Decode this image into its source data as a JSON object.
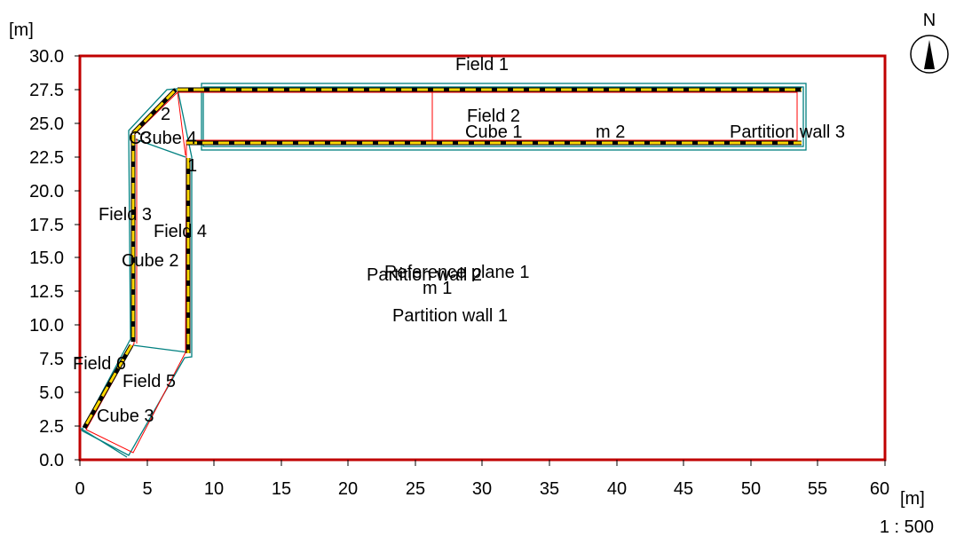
{
  "axes": {
    "y_unit": "[m]",
    "x_unit": "[m]",
    "y_ticks": [
      "0.0",
      "2.5",
      "5.0",
      "7.5",
      "10.0",
      "12.5",
      "15.0",
      "17.5",
      "20.0",
      "22.5",
      "25.0",
      "27.5",
      "30.0"
    ],
    "x_ticks": [
      "0",
      "5",
      "10",
      "15",
      "20",
      "25",
      "30",
      "35",
      "40",
      "45",
      "50",
      "55",
      "60"
    ],
    "scale": "1 : 500",
    "north": "N"
  },
  "colors": {
    "frame": "#c00000",
    "outline": "#008080",
    "wall_fill": "#ffd700",
    "wall_dash": "#000000",
    "interior": "#ff0000"
  },
  "labels": {
    "field_1": "Field 1",
    "field_2": "Field 2",
    "field_3": "Field 3",
    "field_4": "Field 4",
    "field_5": "Field 5",
    "field_6": "Field 6",
    "cube_1": "Cube 1",
    "cube_2": "Cube 2",
    "cube_3": "Cube 3",
    "cube_4": "Cube 4",
    "c3": "C3",
    "num_1": "1",
    "num_2": "2",
    "m_1": "m 1",
    "m_2": "m 2",
    "reference_plane_1": "Reference plane 1",
    "partition_wall_1": "Partition wall 1",
    "partition_wall_2": "Partition wall 2",
    "partition_wall_3": "Partition wall 3"
  }
}
